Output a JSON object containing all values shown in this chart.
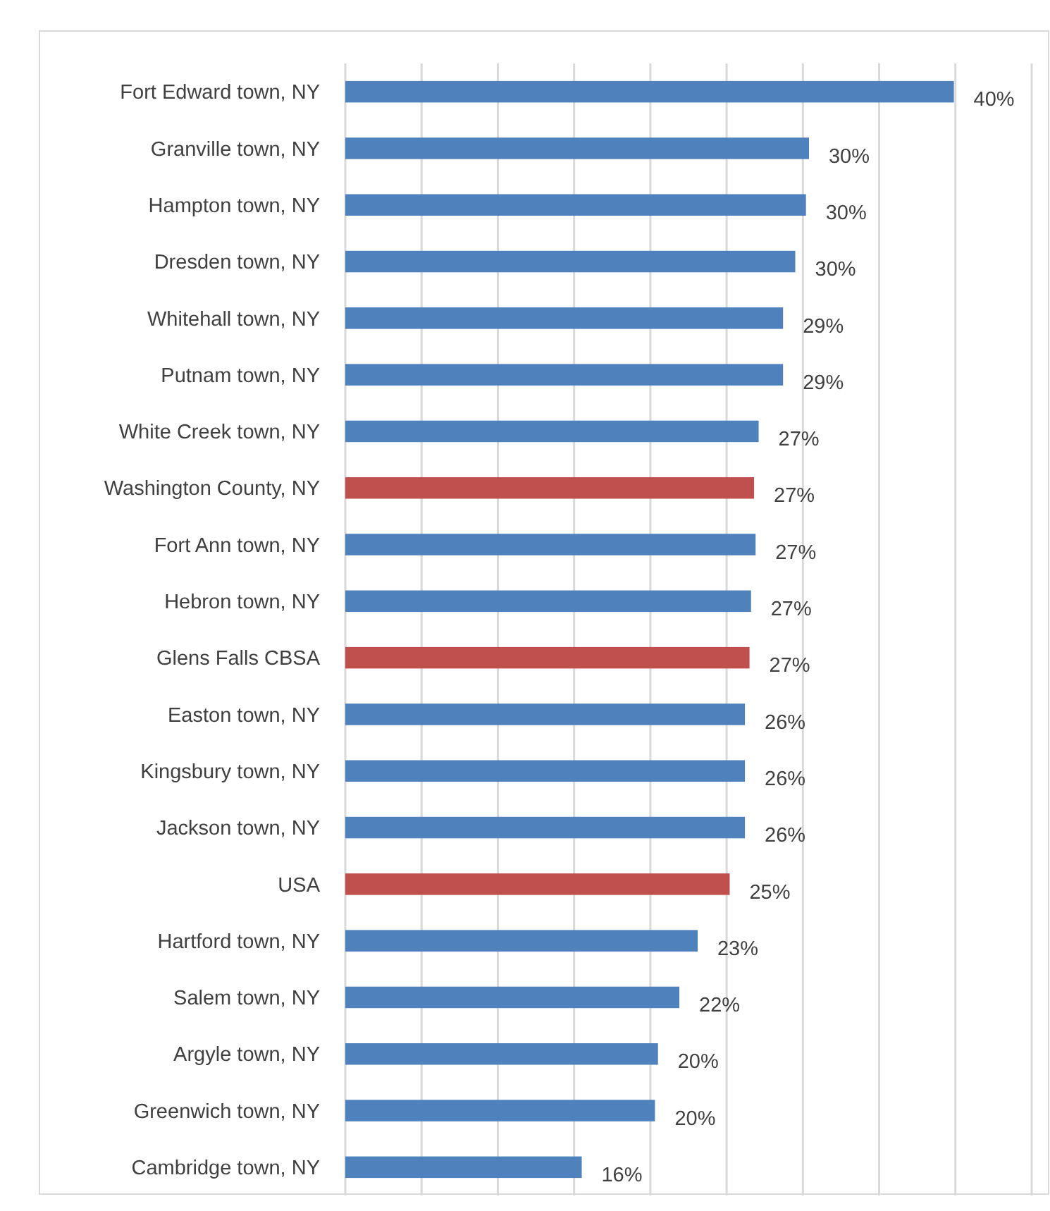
{
  "chart_data": {
    "type": "bar",
    "orientation": "horizontal",
    "categories": [
      "Fort Edward town, NY",
      "Granville town, NY",
      "Hampton town, NY",
      "Dresden town, NY",
      "Whitehall town, NY",
      "Putnam town, NY",
      "White Creek town, NY",
      "Washington County, NY",
      "Fort Ann town, NY",
      "Hebron town, NY",
      "Glens Falls CBSA",
      "Easton town, NY",
      "Kingsbury town, NY",
      "Jackson town, NY",
      "USA",
      "Hartford town, NY",
      "Salem town, NY",
      "Argyle town, NY",
      "Greenwich town, NY",
      "Cambridge town, NY"
    ],
    "values": [
      39.9,
      30.4,
      30.2,
      29.5,
      28.7,
      28.7,
      27.1,
      26.8,
      26.9,
      26.6,
      26.5,
      26.2,
      26.2,
      26.2,
      25.2,
      23.1,
      21.9,
      20.5,
      20.3,
      15.5
    ],
    "colors": [
      "#4f81bd",
      "#4f81bd",
      "#4f81bd",
      "#4f81bd",
      "#4f81bd",
      "#4f81bd",
      "#4f81bd",
      "#c0504d",
      "#4f81bd",
      "#4f81bd",
      "#c0504d",
      "#4f81bd",
      "#4f81bd",
      "#4f81bd",
      "#c0504d",
      "#4f81bd",
      "#4f81bd",
      "#4f81bd",
      "#4f81bd",
      "#4f81bd"
    ],
    "value_labels": [
      "40%",
      "30%",
      "30%",
      "30%",
      "29%",
      "29%",
      "27%",
      "27%",
      "27%",
      "27%",
      "27%",
      "26%",
      "26%",
      "26%",
      "25%",
      "23%",
      "22%",
      "20%",
      "20%",
      "16%"
    ],
    "xlim": [
      0,
      45
    ],
    "xticks": [
      {
        "value": 0,
        "label": null
      },
      {
        "value": 5,
        "label": null
      },
      {
        "value": 10,
        "label": null
      },
      {
        "value": 15,
        "label": null
      },
      {
        "value": 20,
        "label": null
      },
      {
        "value": 25,
        "label": null
      },
      {
        "value": 30,
        "label": null
      },
      {
        "value": 35,
        "label": null
      },
      {
        "value": 40,
        "label": null
      },
      {
        "value": 45,
        "label": null
      }
    ],
    "grid": "x",
    "tick_labels": "y"
  }
}
